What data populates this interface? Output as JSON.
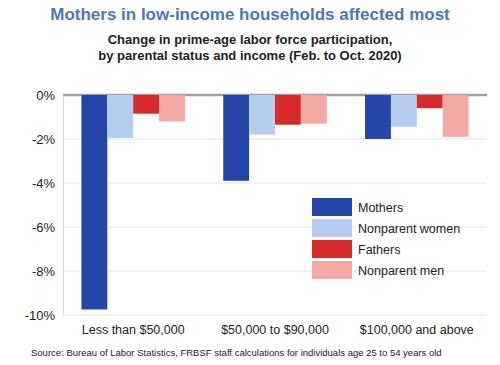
{
  "chart_data": {
    "type": "bar",
    "title": "Mothers in low-income households affected most",
    "subtitle": [
      "Change in prime-age labor force participation,",
      "by parental status and income (Feb. to Oct. 2020)"
    ],
    "source": "Source: Bureau of Labor Statistics, FRBSF staff calculations for individuals age 25 to 54 years old",
    "categories": [
      "Less than $50,000",
      "$50,000 to $90,000",
      "$100,000 and above"
    ],
    "series": [
      {
        "name": "Mothers",
        "color": "#2446a8",
        "values": [
          -9.75,
          -3.9,
          -2.0
        ]
      },
      {
        "name": "Nonparent women",
        "color": "#b5cdf0",
        "values": [
          -1.95,
          -1.8,
          -1.45
        ]
      },
      {
        "name": "Fathers",
        "color": "#d52b2b",
        "values": [
          -0.85,
          -1.35,
          -0.6
        ]
      },
      {
        "name": "Nonparent men",
        "color": "#f5a8a2",
        "values": [
          -1.2,
          -1.3,
          -1.9
        ]
      }
    ],
    "ylim": [
      -10,
      0
    ],
    "yticks": [
      {
        "value": 0,
        "label": "0%"
      },
      {
        "value": -2,
        "label": "-2%"
      },
      {
        "value": -4,
        "label": "-4%"
      },
      {
        "value": -6,
        "label": "-6%"
      },
      {
        "value": -8,
        "label": "-8%"
      },
      {
        "value": -10,
        "label": "-10%"
      }
    ],
    "grid": true,
    "legend": "lower right"
  }
}
